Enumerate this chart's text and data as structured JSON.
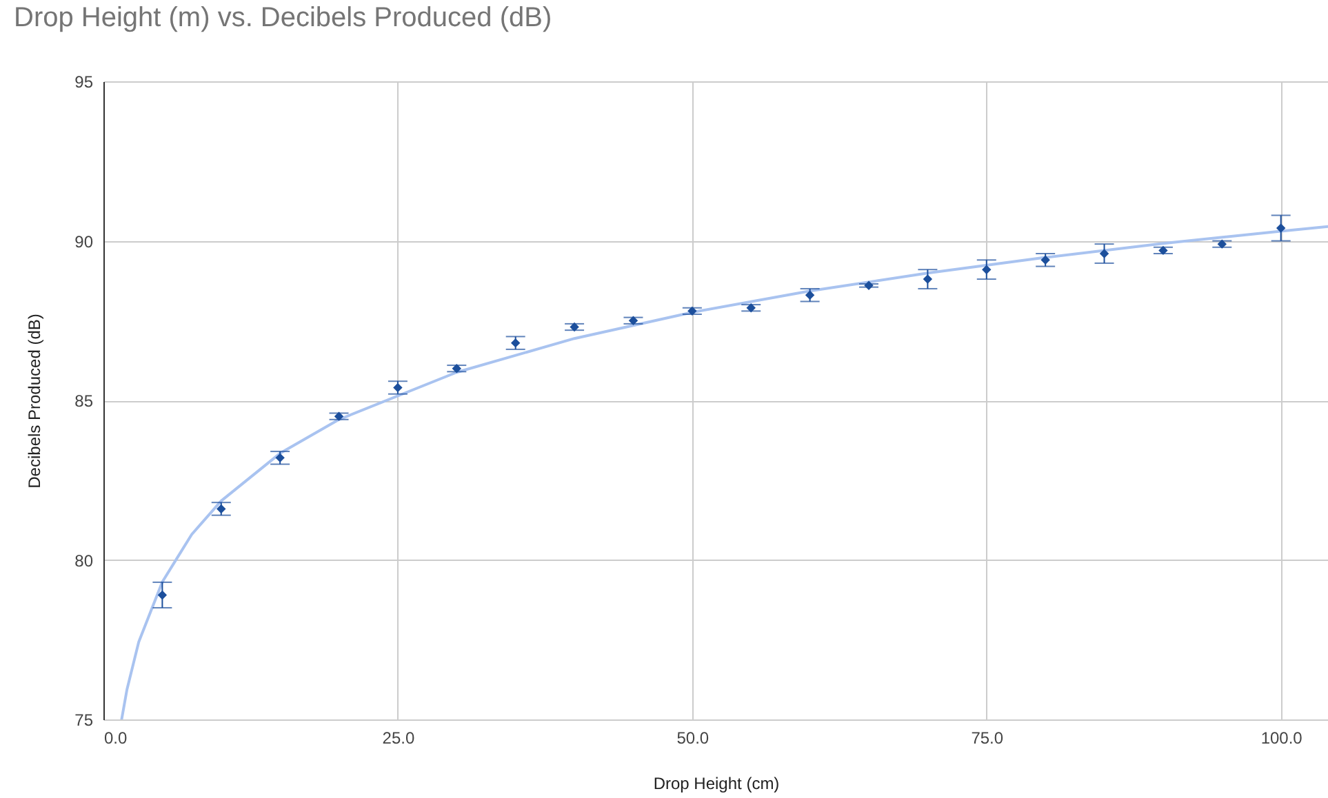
{
  "chart_data": {
    "type": "scatter",
    "title": "Drop Height (m) vs. Decibels Produced (dB)",
    "xlabel": "Drop Height (cm)",
    "ylabel": "Decibels Produced (dB)",
    "x": [
      5,
      10,
      15,
      20,
      25,
      30,
      35,
      40,
      45,
      50,
      55,
      60,
      65,
      70,
      75,
      80,
      85,
      90,
      95,
      100
    ],
    "series": [
      {
        "type": "line",
        "color": "#a9c3f0",
        "marker": "none",
        "x": [
          1.55,
          2,
          3,
          5,
          7.5,
          10,
          15,
          20,
          30,
          40,
          50,
          60,
          70,
          80,
          90,
          100,
          104
        ],
        "values": [
          75.01,
          75.94,
          77.43,
          79.31,
          80.8,
          81.85,
          83.34,
          84.4,
          85.88,
          86.94,
          87.76,
          88.43,
          88.99,
          89.48,
          89.92,
          90.3,
          90.45
        ]
      },
      {
        "type": "scatter",
        "color": "#1c4f9c",
        "marker": "diamond",
        "values": [
          78.9,
          81.6,
          83.2,
          84.5,
          85.4,
          86.0,
          86.8,
          87.3,
          87.5,
          87.8,
          87.9,
          88.3,
          88.6,
          88.8,
          89.1,
          89.4,
          89.6,
          89.7,
          89.9,
          90.4
        ],
        "errors": [
          0.4,
          0.2,
          0.2,
          0.1,
          0.2,
          0.1,
          0.2,
          0.1,
          0.1,
          0.1,
          0.1,
          0.2,
          0.05,
          0.3,
          0.3,
          0.2,
          0.3,
          0.1,
          0.1,
          0.4
        ]
      }
    ],
    "xlim": [
      0,
      104
    ],
    "xticks": [
      {
        "value": 0,
        "label": "0.0"
      },
      {
        "value": 25,
        "label": "25.0"
      },
      {
        "value": 50,
        "label": "50.0"
      },
      {
        "value": 75,
        "label": "75.0"
      },
      {
        "value": 100,
        "label": "100.0"
      }
    ],
    "ylim": [
      75,
      95
    ],
    "yticks": [
      75,
      80,
      85,
      90,
      95
    ],
    "grid": true
  }
}
